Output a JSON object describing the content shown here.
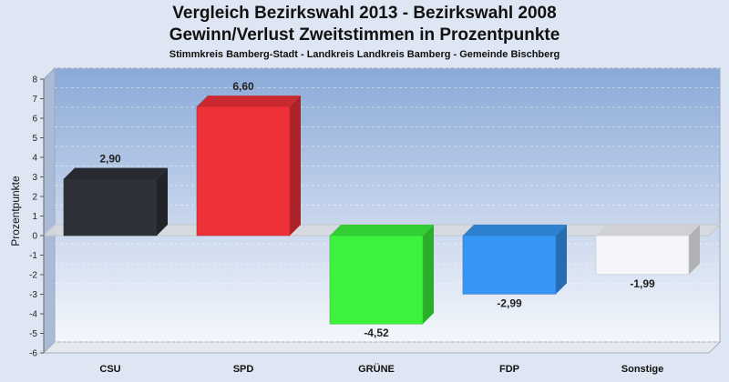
{
  "chart_data": {
    "type": "bar",
    "title": "Vergleich Bezirkswahl 2013 - Bezirkswahl 2008",
    "subtitle": "Gewinn/Verlust Zweitstimmen in Prozentpunkte",
    "caption": "Stimmkreis Bamberg-Stadt - Landkreis Landkreis Bamberg - Gemeinde Bischberg",
    "ylabel": "Prozentpunkte",
    "ylim": [
      -6,
      8
    ],
    "yticks": [
      8,
      7,
      6,
      5,
      4,
      3,
      2,
      1,
      0,
      -1,
      -2,
      -3,
      -4,
      -5,
      -6
    ],
    "grid": true,
    "categories": [
      "CSU",
      "SPD",
      "GRÜNE",
      "FDP",
      "Sonstige"
    ],
    "values": [
      2.9,
      6.6,
      -4.52,
      -2.99,
      -1.99
    ],
    "value_labels": [
      "2,90",
      "6,60",
      "-4,52",
      "-2,99",
      "-1,99"
    ],
    "colors": [
      "#2e3138",
      "#ee3038",
      "#3cf23c",
      "#3696f5",
      "#f4f6f9"
    ]
  }
}
